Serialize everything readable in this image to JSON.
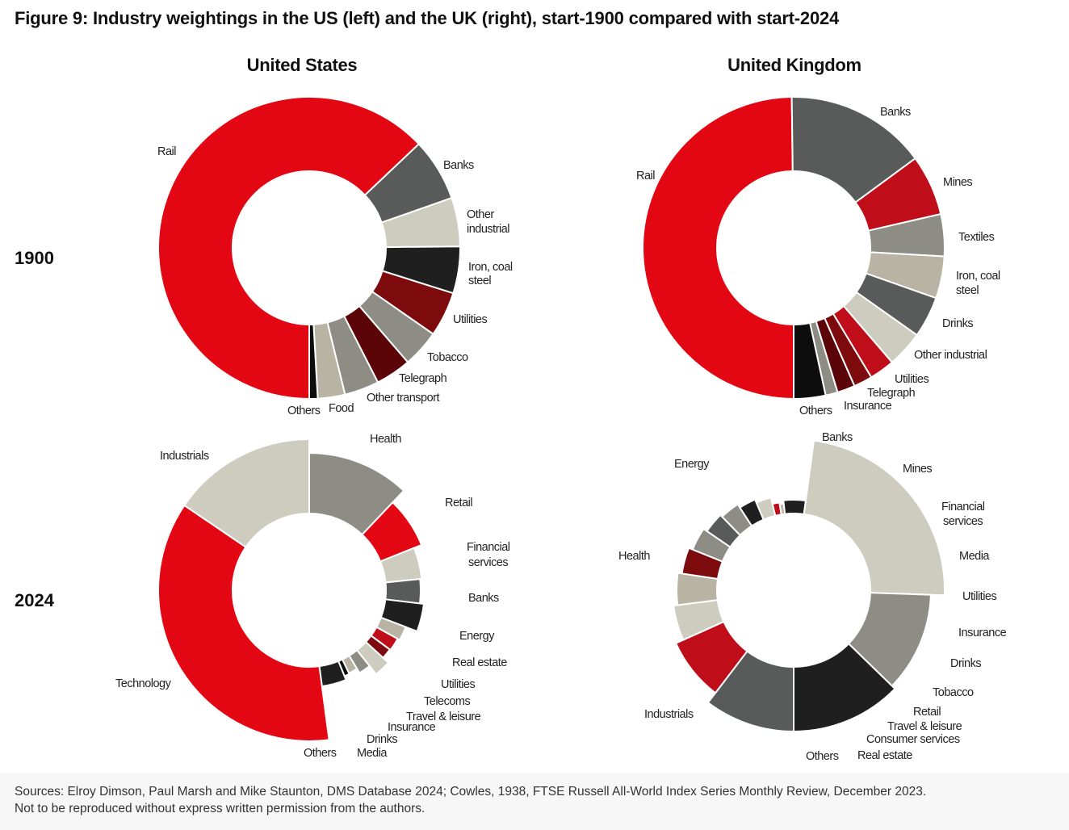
{
  "figure_title": "Figure 9: Industry weightings in the US (left) and the UK (right), start-1900 compared with start-2024",
  "column_titles": [
    "United States",
    "United Kingdom"
  ],
  "row_labels": [
    "1900",
    "2024"
  ],
  "sources": [
    "Sources: Elroy Dimson, Paul Marsh and Mike Staunton, DMS Database 2024; Cowles, 1938, FTSE Russell All-World Index Series Monthly Review, December 2023.",
    "Not to be reproduced without express written permission from the authors."
  ],
  "colors": {
    "red": "#e30613",
    "dark_red": "#c00d1a",
    "maroon": "#7d0b0e",
    "darkest_red": "#5c0508",
    "dark_grey": "#595b5b",
    "grey": "#8e8d85",
    "light_grey": "#cdccbf",
    "stone": "#b8b3a3",
    "black": "#1f1f1f",
    "near_black": "#0d0d0d"
  },
  "chart_data": [
    {
      "type": "pie",
      "variant": "donut",
      "country": "United States",
      "year": "1900",
      "slices": [
        {
          "label": "Rail",
          "value": 62.8,
          "color": "red"
        },
        {
          "label": "Banks",
          "value": 6.7,
          "color": "dark_grey"
        },
        {
          "label": "Other industrial",
          "value": 5.2,
          "color": "light_grey"
        },
        {
          "label": "Iron, coal steel",
          "value": 5.0,
          "color": "black"
        },
        {
          "label": "Utilities",
          "value": 4.8,
          "color": "maroon"
        },
        {
          "label": "Tobacco",
          "value": 4.0,
          "color": "grey"
        },
        {
          "label": "Telegraph",
          "value": 3.8,
          "color": "darkest_red"
        },
        {
          "label": "Other transport",
          "value": 3.7,
          "color": "grey"
        },
        {
          "label": "Food",
          "value": 2.9,
          "color": "stone"
        },
        {
          "label": "Others",
          "value": 0.9,
          "color": "near_black"
        }
      ]
    },
    {
      "type": "pie",
      "variant": "donut",
      "country": "United Kingdom",
      "year": "1900",
      "slices": [
        {
          "label": "Rail",
          "value": 49.8,
          "color": "red"
        },
        {
          "label": "Banks",
          "value": 15.1,
          "color": "dark_grey"
        },
        {
          "label": "Mines",
          "value": 6.5,
          "color": "dark_red"
        },
        {
          "label": "Textiles",
          "value": 4.5,
          "color": "grey"
        },
        {
          "label": "Iron, coal steel",
          "value": 4.5,
          "color": "stone"
        },
        {
          "label": "Drinks",
          "value": 4.4,
          "color": "dark_grey"
        },
        {
          "label": "Other industrial",
          "value": 3.9,
          "color": "light_grey"
        },
        {
          "label": "Utilities",
          "value": 2.7,
          "color": "dark_red"
        },
        {
          "label": "Telegraph",
          "value": 2.0,
          "color": "maroon"
        },
        {
          "label": "Insurance",
          "value": 1.9,
          "color": "darkest_red"
        },
        {
          "label": "Others (grey)",
          "value": 1.3,
          "color": "grey"
        },
        {
          "label": "Others",
          "value": 3.4,
          "color": "near_black"
        }
      ]
    },
    {
      "type": "pie",
      "variant": "donut",
      "country": "United States",
      "year": "2024",
      "slices": [
        {
          "label": "Health",
          "value": 12.1,
          "color": "grey"
        },
        {
          "label": "Retail",
          "value": 6.8,
          "color": "red"
        },
        {
          "label": "Financial services",
          "value": 4.5,
          "color": "light_grey"
        },
        {
          "label": "Banks",
          "value": 3.5,
          "color": "dark_grey"
        },
        {
          "label": "Energy",
          "value": 3.9,
          "color": "black"
        },
        {
          "label": "Real estate",
          "value": 2.2,
          "color": "stone"
        },
        {
          "label": "Utilities",
          "value": 2.1,
          "color": "dark_red"
        },
        {
          "label": "Telecoms",
          "value": 1.7,
          "color": "maroon"
        },
        {
          "label": "Travel & leisure",
          "value": 2.5,
          "color": "light_grey"
        },
        {
          "label": "Insurance",
          "value": 2.0,
          "color": "grey"
        },
        {
          "label": "Drinks",
          "value": 1.6,
          "color": "stone"
        },
        {
          "label": "Media",
          "value": 0.9,
          "color": "near_black"
        },
        {
          "label": "Others",
          "value": 4.1,
          "color": "black"
        },
        {
          "label": "Technology",
          "value": 36.6,
          "color": "red"
        },
        {
          "label": "Industrials",
          "value": 15.5,
          "color": "light_grey"
        }
      ]
    },
    {
      "type": "pie",
      "variant": "donut",
      "country": "United Kingdom",
      "year": "2024",
      "slices": [
        {
          "label": "Banks",
          "value": 9.7,
          "color": "dark_grey"
        },
        {
          "label": "Mines",
          "value": 7.4,
          "color": "dark_red"
        },
        {
          "label": "Financial services",
          "value": 4.4,
          "color": "light_grey"
        },
        {
          "label": "Media",
          "value": 4.1,
          "color": "stone"
        },
        {
          "label": "Utilities",
          "value": 3.5,
          "color": "maroon"
        },
        {
          "label": "Insurance",
          "value": 3.2,
          "color": "grey"
        },
        {
          "label": "Drinks",
          "value": 3.0,
          "color": "dark_grey"
        },
        {
          "label": "Tobacco",
          "value": 2.9,
          "color": "grey"
        },
        {
          "label": "Retail",
          "value": 2.6,
          "color": "black"
        },
        {
          "label": "Travel & leisure",
          "value": 2.4,
          "color": "light_grey"
        },
        {
          "label": "Consumer services",
          "value": 1.2,
          "color": "dark_red"
        },
        {
          "label": "Real estate",
          "value": 0.7,
          "color": "stone"
        },
        {
          "label": "Others",
          "value": 3.7,
          "color": "black"
        },
        {
          "label": "Industrials",
          "value": 21.9,
          "color": "light_grey"
        },
        {
          "label": "Health",
          "value": 11.0,
          "color": "grey"
        },
        {
          "label": "Energy",
          "value": 11.9,
          "color": "black"
        }
      ]
    }
  ],
  "slice_labels": [
    {
      "text": "Rail"
    },
    {
      "text": "Banks"
    },
    {
      "text": "Other"
    },
    {
      "text": "industrial"
    },
    {
      "text": "Iron, coal"
    },
    {
      "text": "steel"
    },
    {
      "text": "Utilities"
    },
    {
      "text": "Tobacco"
    },
    {
      "text": "Telegraph"
    },
    {
      "text": "Other transport"
    },
    {
      "text": "Food"
    },
    {
      "text": "Others"
    },
    {
      "text": "Rail"
    },
    {
      "text": "Banks"
    },
    {
      "text": "Mines"
    },
    {
      "text": "Textiles"
    },
    {
      "text": "Iron, coal"
    },
    {
      "text": "steel"
    },
    {
      "text": "Drinks"
    },
    {
      "text": "Other industrial"
    },
    {
      "text": "Utilities"
    },
    {
      "text": "Telegraph"
    },
    {
      "text": "Insurance"
    },
    {
      "text": "Others"
    },
    {
      "text": "Industrials"
    },
    {
      "text": "Health"
    },
    {
      "text": "Retail"
    },
    {
      "text": "Financial"
    },
    {
      "text": "services"
    },
    {
      "text": "Banks"
    },
    {
      "text": "Energy"
    },
    {
      "text": "Real estate"
    },
    {
      "text": "Utilities"
    },
    {
      "text": "Telecoms"
    },
    {
      "text": "Travel & leisure"
    },
    {
      "text": "Insurance"
    },
    {
      "text": "Drinks"
    },
    {
      "text": "Media"
    },
    {
      "text": "Others"
    },
    {
      "text": "Technology"
    },
    {
      "text": "Banks"
    },
    {
      "text": "Energy"
    },
    {
      "text": "Mines"
    },
    {
      "text": "Financial"
    },
    {
      "text": "services"
    },
    {
      "text": "Media"
    },
    {
      "text": "Utilities"
    },
    {
      "text": "Insurance"
    },
    {
      "text": "Drinks"
    },
    {
      "text": "Tobacco"
    },
    {
      "text": "Retail"
    },
    {
      "text": "Travel & leisure"
    },
    {
      "text": "Consumer services"
    },
    {
      "text": "Real estate"
    },
    {
      "text": "Others"
    },
    {
      "text": "Health"
    },
    {
      "text": "Industrials"
    }
  ]
}
